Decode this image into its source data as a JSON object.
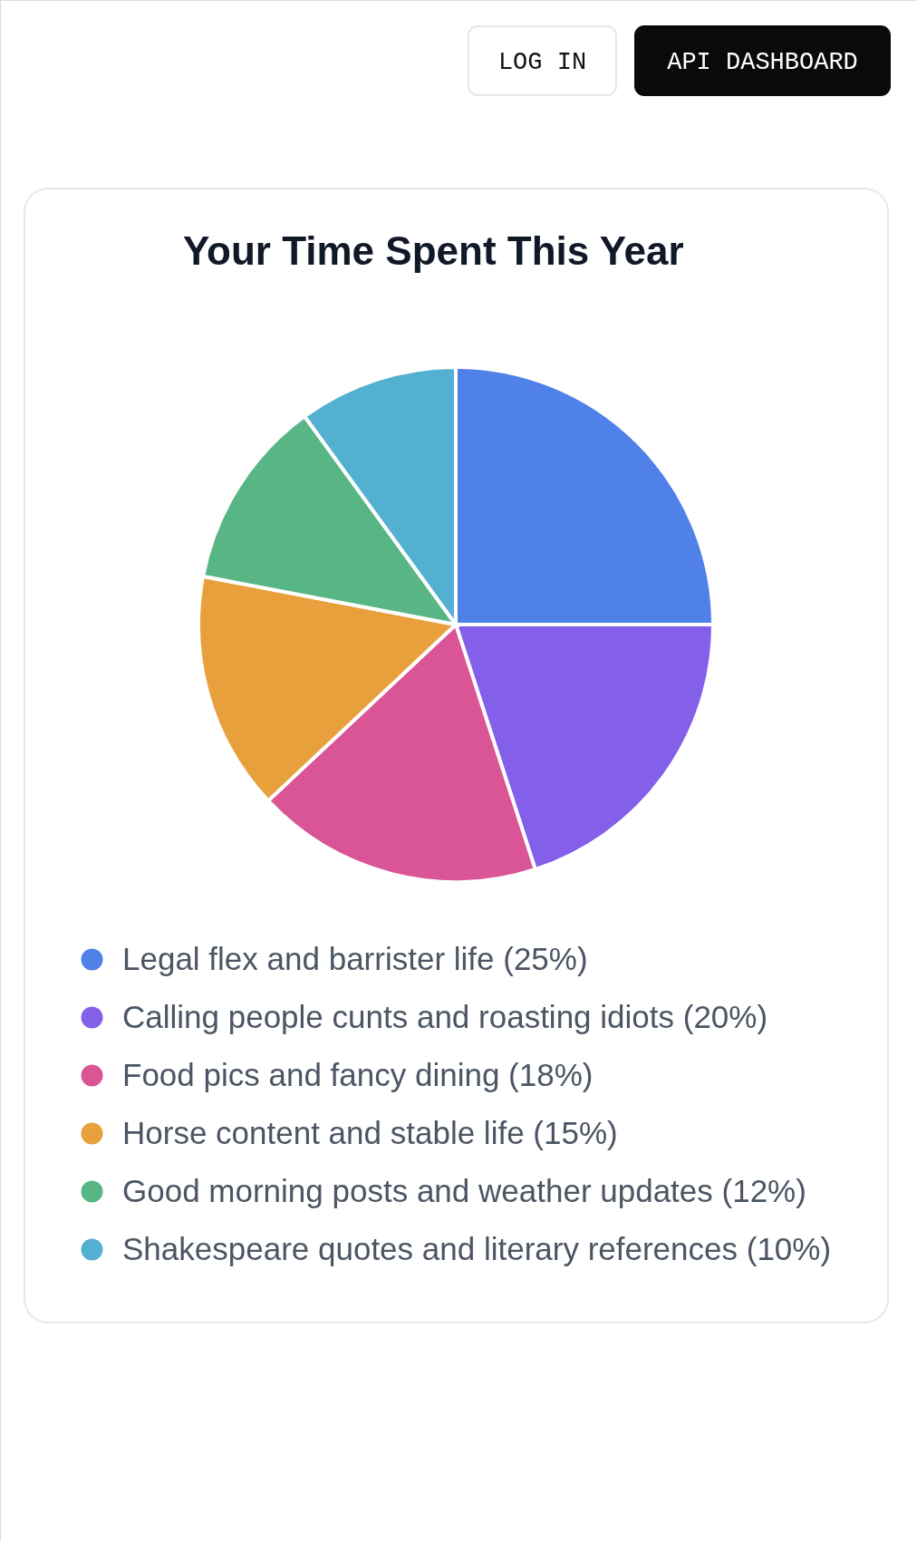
{
  "chart_data": {
    "type": "pie",
    "title": "Your Time Spent This Year",
    "categories": [
      "Legal flex and barrister life (25%)",
      "Calling people cunts and roasting idiots (20%)",
      "Food pics and fancy dining (18%)",
      "Horse content and stable life (15%)",
      "Good morning posts and weather updates (12%)",
      "Shakespeare quotes and literary references (10%)"
    ],
    "values": [
      25,
      20,
      18,
      15,
      12,
      10
    ],
    "colors": [
      "#4f81e8",
      "#845fe9",
      "#d95595",
      "#e8a03c",
      "#58b685",
      "#54b0d0"
    ],
    "legend": "bottom",
    "annotations": [
      "LOG IN",
      "API DASHBOARD"
    ]
  }
}
